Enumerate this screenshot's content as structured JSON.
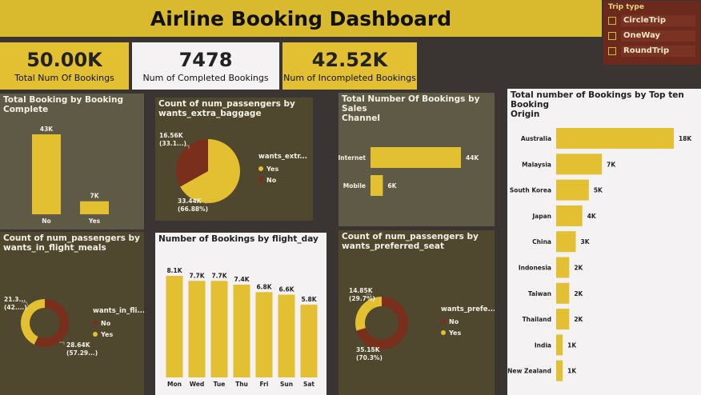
{
  "dashboard": {
    "title": "Airline Booking Dashboard",
    "colors": {
      "gold": "#e2c032",
      "maroon": "#7a2e1c",
      "olive": "#4f472e",
      "grey_olive": "#5f5a46",
      "light": "#f4f2f2"
    }
  },
  "slicer": {
    "header": "Trip type",
    "items": [
      "CircleTrip",
      "OneWay",
      "RoundTrip"
    ]
  },
  "kpis": [
    {
      "value": "50.00K",
      "caption": "Total Num Of Bookings"
    },
    {
      "value": "7478",
      "caption": "Num of Completed Bookings"
    },
    {
      "value": "42.52K",
      "caption": "Num of Incompleted Bookings"
    }
  ],
  "panels": {
    "booking_complete": {
      "title_lines": [
        "Total Booking by Booking",
        "Complete"
      ]
    },
    "extra_baggage": {
      "title_lines": [
        "Count of num_passengers by",
        "wants_extra_baggage"
      ],
      "legend_title": "wants_extr...",
      "legend": [
        "Yes",
        "No"
      ]
    },
    "sales_channel": {
      "title_lines": [
        "Total Number Of Bookings by Sales",
        "Channel"
      ]
    },
    "top_origin": {
      "title_lines": [
        "Total number of Bookings by Top ten Booking",
        "Origin"
      ]
    },
    "flight_meals": {
      "title_lines": [
        "Count of num_passengers by",
        "wants_in_flight_meals"
      ],
      "legend_title": "wants_in_fli...",
      "legend": [
        "No",
        "Yes"
      ]
    },
    "flight_day": {
      "title_lines": [
        "Number of Bookings by flight_day"
      ]
    },
    "preferred_seat": {
      "title_lines": [
        "Count of num_passengers by",
        "wants_preferred_seat"
      ],
      "legend_title": "wants_prefe...",
      "legend": [
        "No",
        "Yes"
      ]
    }
  },
  "chart_data": [
    {
      "id": "booking_complete",
      "type": "bar",
      "categories": [
        "No",
        "Yes"
      ],
      "values": [
        43000,
        7000
      ],
      "data_labels": [
        "43K",
        "7K"
      ],
      "title": "Total Booking by Booking Complete"
    },
    {
      "id": "extra_baggage",
      "type": "pie",
      "categories": [
        "Yes",
        "No"
      ],
      "values": [
        33440,
        16560
      ],
      "data_labels": [
        [
          "33.44K",
          "(66.88%)"
        ],
        [
          "16.56K",
          "(33.1...)"
        ]
      ],
      "title": "Count of num_passengers by wants_extra_baggage"
    },
    {
      "id": "sales_channel",
      "type": "bar",
      "orientation": "horizontal",
      "categories": [
        "Internet",
        "Mobile"
      ],
      "values": [
        44000,
        6000
      ],
      "data_labels": [
        "44K",
        "6K"
      ],
      "title": "Total Number Of Bookings by Sales Channel"
    },
    {
      "id": "top_origin",
      "type": "bar",
      "orientation": "horizontal",
      "categories": [
        "Australia",
        "Malaysia",
        "South Korea",
        "Japan",
        "China",
        "Indonesia",
        "Taiwan",
        "Thailand",
        "India",
        "New Zealand"
      ],
      "values": [
        18000,
        7000,
        5000,
        4000,
        3000,
        2000,
        2000,
        2000,
        1000,
        1000
      ],
      "data_labels": [
        "18K",
        "7K",
        "5K",
        "4K",
        "3K",
        "2K",
        "2K",
        "2K",
        "1K",
        "1K"
      ],
      "title": "Total number of Bookings by Top ten Booking Origin"
    },
    {
      "id": "flight_meals",
      "type": "pie",
      "donut": true,
      "categories": [
        "No",
        "Yes"
      ],
      "values": [
        28640,
        21360
      ],
      "data_labels": [
        [
          "28.64K",
          "(57.29...)"
        ],
        [
          "21.3...",
          "(42....)"
        ]
      ],
      "title": "Count of num_passengers by wants_in_flight_meals"
    },
    {
      "id": "flight_day",
      "type": "bar",
      "categories": [
        "Mon",
        "Wed",
        "Tue",
        "Thu",
        "Fri",
        "Sun",
        "Sat"
      ],
      "values": [
        8100,
        7700,
        7700,
        7400,
        6800,
        6600,
        5800
      ],
      "data_labels": [
        "8.1K",
        "7.7K",
        "7.7K",
        "7.4K",
        "6.8K",
        "6.6K",
        "5.8K"
      ],
      "title": "Number of Bookings by flight_day"
    },
    {
      "id": "preferred_seat",
      "type": "pie",
      "donut": true,
      "categories": [
        "No",
        "Yes"
      ],
      "values": [
        35150,
        14850
      ],
      "data_labels": [
        [
          "35.15K",
          "(70.3%)"
        ],
        [
          "14.85K",
          "(29.7%)"
        ]
      ],
      "title": "Count of num_passengers by wants_preferred_seat"
    }
  ]
}
